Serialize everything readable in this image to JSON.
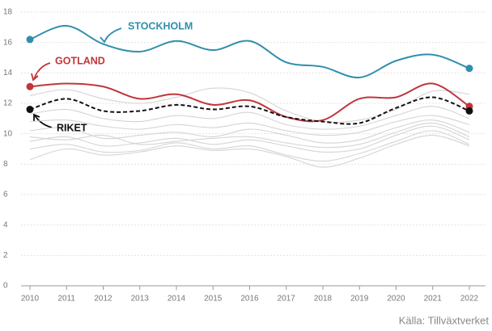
{
  "chart_data": {
    "type": "line",
    "x": [
      2010,
      2011,
      2012,
      2013,
      2014,
      2015,
      2016,
      2017,
      2018,
      2019,
      2020,
      2021,
      2022
    ],
    "xlim": [
      2010,
      2022
    ],
    "xticks": [
      2010,
      2011,
      2012,
      2013,
      2014,
      2015,
      2016,
      2017,
      2018,
      2019,
      2020,
      2021,
      2022
    ],
    "ylim": [
      0,
      18
    ],
    "yticks": [
      0,
      2,
      4,
      6,
      8,
      10,
      12,
      14,
      16,
      18
    ],
    "grid": true,
    "source": "Källa: Tillväxtverket",
    "series": [
      {
        "color": "#d4d4d4",
        "values": [
          12.5,
          12.9,
          12.3,
          12.0,
          12.4,
          13.0,
          12.7,
          11.5,
          10.8,
          10.9,
          11.6,
          12.8,
          12.6
        ]
      },
      {
        "color": "#d4d4d4",
        "values": [
          10.2,
          10.4,
          9.7,
          9.9,
          10.1,
          9.8,
          10.3,
          9.9,
          9.4,
          9.6,
          10.4,
          10.9,
          10.1
        ]
      },
      {
        "color": "#d4d4d4",
        "values": [
          9.5,
          9.8,
          9.2,
          9.4,
          9.7,
          9.3,
          9.6,
          9.2,
          8.8,
          9.0,
          9.9,
          10.5,
          9.6
        ]
      },
      {
        "color": "#d4d4d4",
        "values": [
          9.0,
          9.3,
          8.8,
          8.9,
          9.4,
          9.0,
          9.2,
          8.6,
          8.2,
          8.7,
          9.5,
          10.2,
          9.3
        ]
      },
      {
        "color": "#d4d4d4",
        "values": [
          8.3,
          9.0,
          8.6,
          8.8,
          9.2,
          8.9,
          9.0,
          8.5,
          7.8,
          8.4,
          9.3,
          9.9,
          9.2
        ]
      },
      {
        "color": "#d4d4d4",
        "values": [
          10.8,
          10.9,
          10.5,
          10.3,
          10.6,
          10.4,
          10.7,
          10.2,
          9.9,
          10.1,
          10.8,
          11.2,
          10.6
        ]
      },
      {
        "color": "#d4d4d4",
        "values": [
          9.8,
          9.6,
          9.9,
          9.3,
          9.5,
          9.7,
          9.8,
          9.4,
          9.1,
          9.3,
          10.1,
          10.7,
          9.8
        ]
      },
      {
        "color": "#d4d4d4",
        "values": [
          11.3,
          11.6,
          11.0,
          10.8,
          11.2,
          11.0,
          11.4,
          10.6,
          10.3,
          10.5,
          11.2,
          11.8,
          11.0
        ]
      },
      {
        "name": "STOCKHOLM",
        "color": "#2f8fad",
        "values": [
          16.2,
          17.1,
          15.9,
          15.4,
          16.1,
          15.5,
          16.1,
          14.7,
          14.4,
          13.7,
          14.8,
          15.2,
          14.3
        ]
      },
      {
        "name": "GOTLAND",
        "color": "#c0363a",
        "values": [
          13.1,
          13.3,
          13.1,
          12.3,
          12.6,
          11.9,
          12.2,
          11.1,
          10.9,
          12.3,
          12.4,
          13.3,
          11.8
        ]
      },
      {
        "name": "RIKET",
        "color": "#111111",
        "dashed": true,
        "values": [
          11.6,
          12.3,
          11.5,
          11.5,
          11.9,
          11.6,
          11.8,
          11.1,
          10.8,
          10.7,
          11.7,
          12.4,
          11.5
        ]
      }
    ]
  }
}
